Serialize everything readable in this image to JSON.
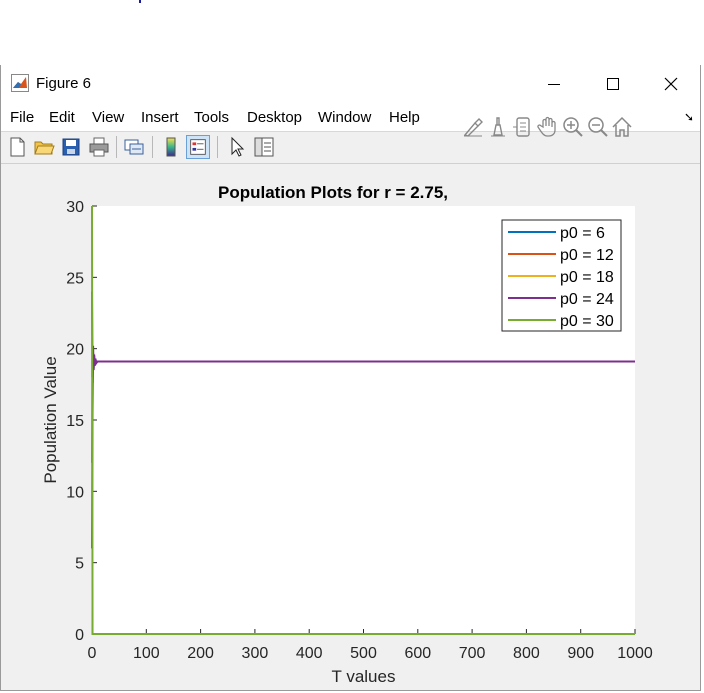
{
  "window": {
    "title": "Figure 6",
    "minimize_icon": "minimize-icon",
    "maximize_icon": "maximize-icon",
    "close_icon": "close-icon"
  },
  "menu": [
    "File",
    "Edit",
    "View",
    "Insert",
    "Tools",
    "Desktop",
    "Window",
    "Help"
  ],
  "toolbar": {
    "buttons": [
      "new-figure-icon",
      "open-file-icon",
      "save-icon",
      "print-icon",
      "link-plot-icon",
      "insert-colorbar-icon",
      "insert-legend-icon",
      "edit-plot-arrow-icon",
      "property-inspector-icon"
    ]
  },
  "axes_toolbar": {
    "buttons": [
      "brush-icon",
      "data-tips-icon",
      "restore-view-icon",
      "pan-icon",
      "zoom-in-icon",
      "zoom-out-icon",
      "home-icon"
    ]
  },
  "colors": {
    "series": [
      "#0072BD",
      "#D95319",
      "#EDB120",
      "#7E2F8E",
      "#77AC30"
    ],
    "window_bg": "#f0f0f0"
  },
  "chart_data": {
    "type": "line",
    "title": "Population Plots for r = 2.75,",
    "xlabel": "T values",
    "ylabel": "Population Value",
    "xlim": [
      0,
      1000
    ],
    "ylim": [
      0,
      30
    ],
    "xticks": [
      0,
      100,
      200,
      300,
      400,
      500,
      600,
      700,
      800,
      900,
      1000
    ],
    "yticks": [
      0,
      5,
      10,
      15,
      20,
      25,
      30
    ],
    "grid": false,
    "legend_position": "top-right",
    "equilibrium": 19.1,
    "series": [
      {
        "name": "p0 = 6",
        "x": [
          0,
          1,
          2,
          3,
          4,
          5,
          6,
          8,
          10,
          1000
        ],
        "y": [
          6,
          15.5,
          19.7,
          18.6,
          19.5,
          18.8,
          19.3,
          19.0,
          19.1,
          19.1
        ]
      },
      {
        "name": "p0 = 12",
        "x": [
          0,
          1,
          2,
          3,
          4,
          5,
          6,
          8,
          10,
          1000
        ],
        "y": [
          12,
          18.8,
          19.2,
          19.0,
          19.15,
          19.05,
          19.1,
          19.1,
          19.1,
          19.1
        ]
      },
      {
        "name": "p0 = 18",
        "x": [
          0,
          1,
          2,
          3,
          4,
          5,
          6,
          8,
          10,
          1000
        ],
        "y": [
          18,
          19.5,
          18.8,
          19.3,
          18.95,
          19.2,
          19.05,
          19.1,
          19.1,
          19.1
        ]
      },
      {
        "name": "p0 = 24",
        "x": [
          0,
          1,
          2,
          3,
          4,
          5,
          6,
          8,
          10,
          1000
        ],
        "y": [
          24,
          17.6,
          20.2,
          18.5,
          19.6,
          18.8,
          19.3,
          19.0,
          19.1,
          19.1
        ]
      },
      {
        "name": "p0 = 30",
        "x": [
          0,
          1,
          2,
          3,
          4,
          5,
          6,
          8,
          10,
          12,
          1000
        ],
        "y": [
          30,
          0,
          0,
          0,
          0,
          0,
          0,
          0,
          0,
          0,
          0
        ]
      }
    ]
  }
}
